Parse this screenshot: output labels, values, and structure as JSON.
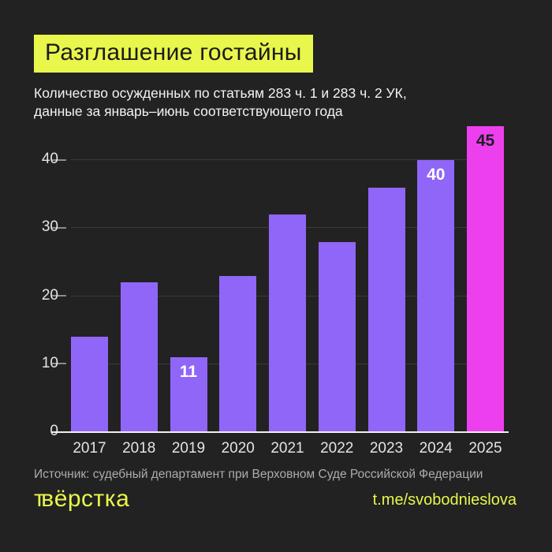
{
  "header": {
    "title": "Разглашение гостайны",
    "subtitle": "Количество осужденных по статьям 283 ч. 1 и 283 ч. 2 УК,\nданные за январь–июнь соответствующего года"
  },
  "chart_data": {
    "type": "bar",
    "categories": [
      "2017",
      "2018",
      "2019",
      "2020",
      "2021",
      "2022",
      "2023",
      "2024",
      "2025"
    ],
    "values": [
      14,
      22,
      11,
      23,
      32,
      28,
      36,
      40,
      45
    ],
    "bar_labels": [
      null,
      null,
      "11",
      null,
      null,
      null,
      null,
      "40",
      "45"
    ],
    "title": "Разглашение гостайны",
    "xlabel": "",
    "ylabel": "",
    "yticks": [
      0,
      10,
      20,
      30,
      40
    ],
    "ylim": [
      0,
      45
    ],
    "grid": true,
    "legend": "none",
    "colors": {
      "bar_default": "#9066F8",
      "bar_highlight": "#EE3FEF",
      "highlight_category": "2025",
      "label_on_default": "#FFFFFF",
      "label_on_highlight": "#1E1E1E"
    }
  },
  "footer": {
    "source": "Источник: судебный департамент при Верховном Суде Российской Федерации",
    "logo_mark": "т",
    "logo_text": "вёрстка",
    "link": "t.me/svobodnieslova"
  },
  "colors": {
    "background": "#222222",
    "accent": "#E9F64B",
    "grid": "#3A3A3A",
    "axis": "#EFEFEF",
    "text_light": "#F3F3F3",
    "text_gray": "#ACACAC"
  }
}
